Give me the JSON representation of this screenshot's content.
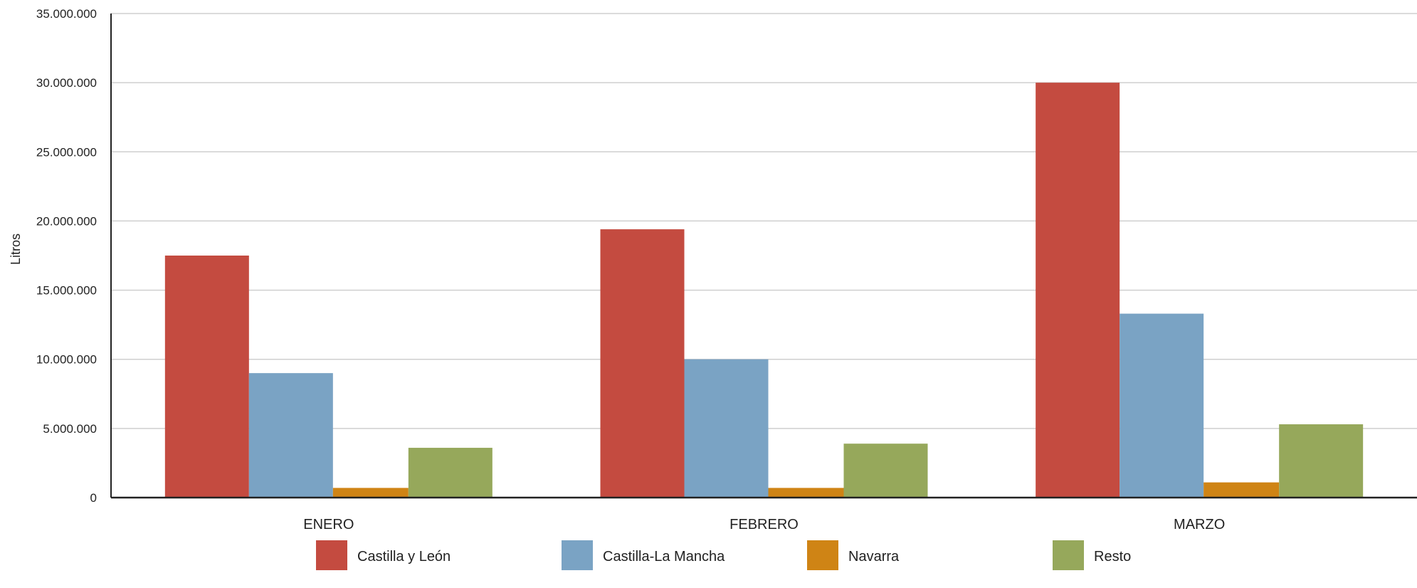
{
  "chart_data": {
    "type": "bar",
    "title": "",
    "xlabel": "",
    "ylabel": "Litros",
    "ylim": [
      0,
      35000000
    ],
    "yticks": [
      0,
      5000000,
      10000000,
      15000000,
      20000000,
      25000000,
      30000000,
      35000000
    ],
    "ytick_labels": [
      "0",
      "5.000.000",
      "10.000.000",
      "15.000.000",
      "20.000.000",
      "25.000.000",
      "30.000.000",
      "35.000.000"
    ],
    "categories": [
      "ENERO",
      "FEBRERO",
      "MARZO"
    ],
    "series": [
      {
        "name": "Castilla y León",
        "color": "#C44B40",
        "values": [
          17500000,
          19400000,
          30000000
        ]
      },
      {
        "name": "Castilla-La Mancha",
        "color": "#7AA3C4",
        "values": [
          9000000,
          10000000,
          13300000
        ]
      },
      {
        "name": "Navarra",
        "color": "#CF8415",
        "values": [
          700000,
          700000,
          1100000
        ]
      },
      {
        "name": "Resto",
        "color": "#96A85B",
        "values": [
          3600000,
          3900000,
          5300000
        ]
      }
    ],
    "grid": true,
    "legend": "bottom"
  }
}
